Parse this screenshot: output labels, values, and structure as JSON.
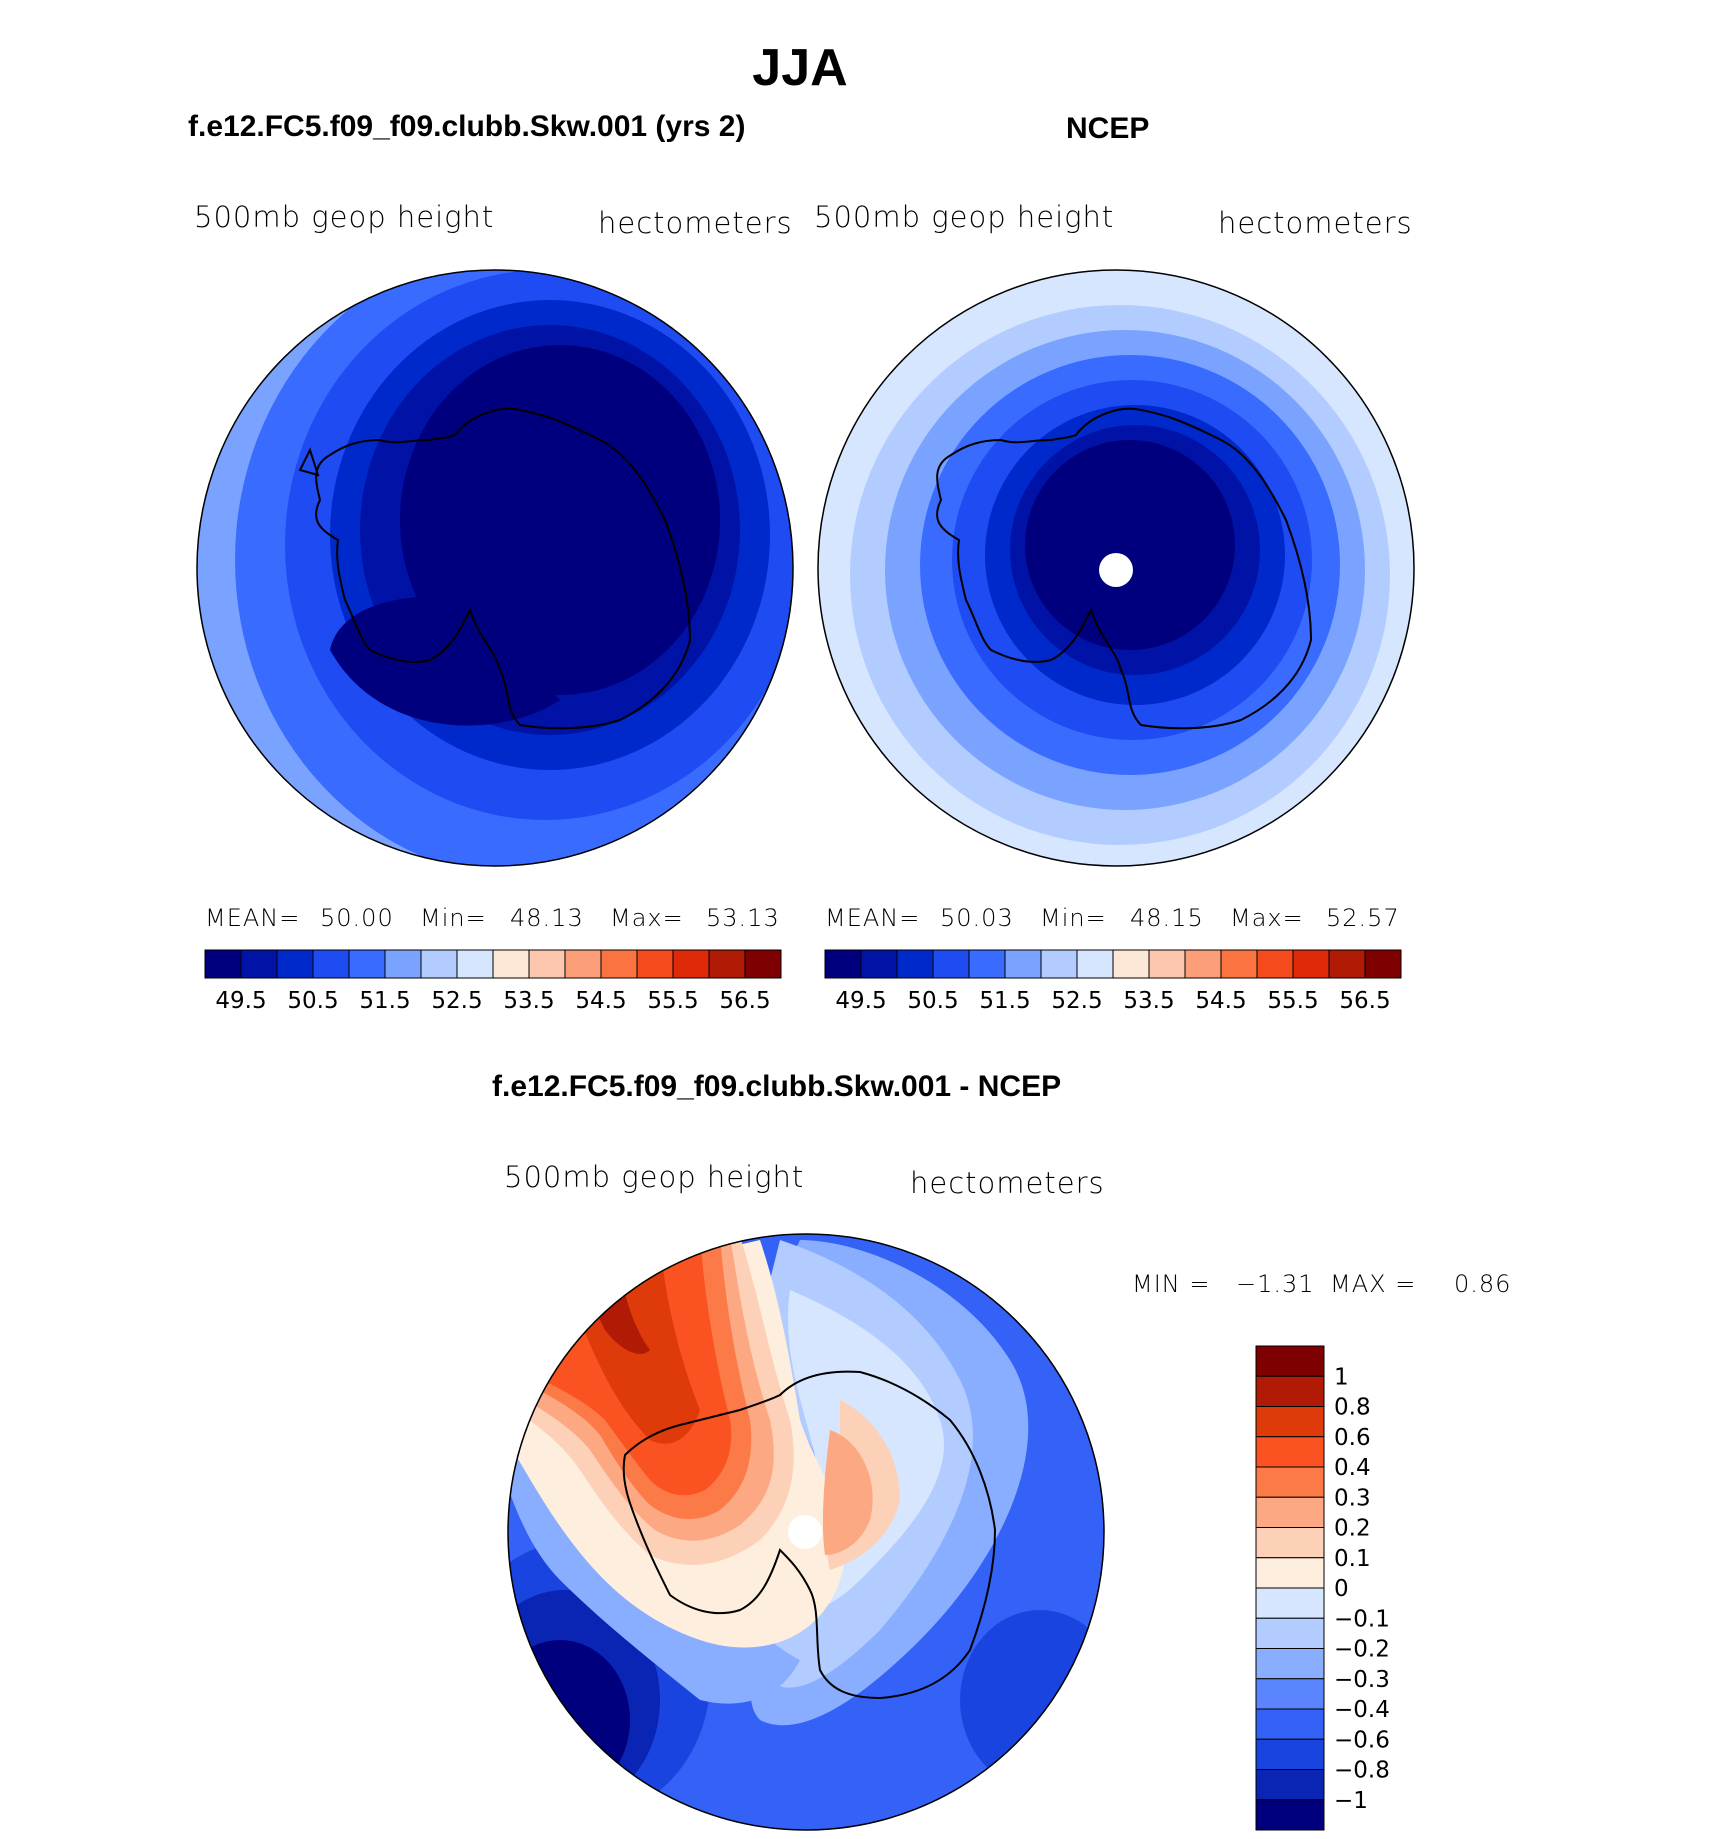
{
  "figure": {
    "title": "JJA",
    "panels": [
      {
        "header": "f.e12.FC5.f09_f09.clubb.Skw.001 (yrs 2)",
        "left_label": "500mb  geop  height",
        "right_label": "hectometers",
        "stats": {
          "mean_label": "MEAN=",
          "mean": "50.00",
          "min_label": "Min=",
          "min": "48.13",
          "max_label": "Max=",
          "max": "53.13"
        }
      },
      {
        "header": "NCEP",
        "left_label": "500mb  geop  height",
        "right_label": "hectometers",
        "stats": {
          "mean_label": "MEAN=",
          "mean": "50.03",
          "min_label": "Min=",
          "min": "48.15",
          "max_label": "Max=",
          "max": "52.57"
        }
      },
      {
        "header": "f.e12.FC5.f09_f09.clubb.Skw.001 - NCEP",
        "left_label": "500mb  geop  height",
        "right_label": "hectometers",
        "stats": {
          "min_label": "MIN =",
          "min": "−1.31",
          "max_label": "MAX =",
          "max": "0.86"
        }
      }
    ]
  },
  "colorbars": {
    "absolute": {
      "colors": [
        "#00007f",
        "#0013a6",
        "#0029cc",
        "#1f4bf2",
        "#3a6bff",
        "#7aa3ff",
        "#b3ccff",
        "#d6e6ff",
        "#fde8d8",
        "#fdc6ae",
        "#fc9f78",
        "#fa7340",
        "#f54b1c",
        "#de2a08",
        "#b11a04",
        "#7f0000"
      ],
      "tick_labels": [
        "49.5",
        "50.5",
        "51.5",
        "52.5",
        "53.5",
        "54.5",
        "55.5",
        "56.5"
      ]
    },
    "difference": {
      "colors": [
        "#7f0000",
        "#b11a04",
        "#de3a0a",
        "#fa5220",
        "#fc7a48",
        "#fca882",
        "#fdd0b8",
        "#fdeede",
        "#d6e6ff",
        "#b3ccff",
        "#8aaeff",
        "#5b84ff",
        "#3462f6",
        "#1a44e0",
        "#0a24b4",
        "#00007f"
      ],
      "tick_labels": [
        "1",
        "0.8",
        "0.6",
        "0.4",
        "0.3",
        "0.2",
        "0.1",
        "0",
        "−0.1",
        "−0.2",
        "−0.3",
        "−0.4",
        "−0.6",
        "−0.8",
        "−1"
      ]
    }
  }
}
